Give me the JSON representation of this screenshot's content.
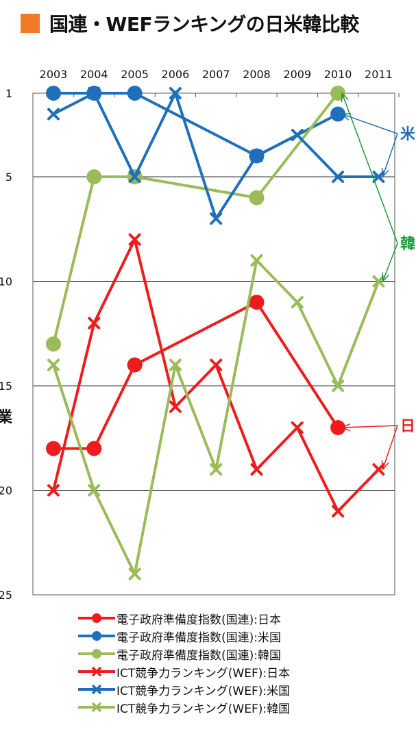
{
  "title": "国連・WEFランキングの日米韓比較",
  "title_color": "#f07a28",
  "side_label": "業",
  "callouts": [
    {
      "text": "米",
      "color": "#1f6fba"
    },
    {
      "text": "韓",
      "color": "#1e9a3c"
    },
    {
      "text": "日",
      "color": "#ee1c1c"
    }
  ],
  "chart_data": {
    "type": "line",
    "title": "国連・WEFランキングの日米韓比較",
    "x": [
      "2003",
      "2004",
      "2005",
      "2006",
      "2007",
      "2008",
      "2009",
      "2010",
      "2011"
    ],
    "y_ticks": [
      "1",
      "5",
      "10",
      "15",
      "20",
      "25"
    ],
    "ylim": [
      1,
      25
    ],
    "y_reversed": true,
    "x_axis_position": "top",
    "grid": "horizontal",
    "series": [
      {
        "name": "電子政府準備度指数(国連):日本",
        "color": "#ee1c1c",
        "marker": "circle",
        "values": [
          18,
          18,
          14,
          null,
          null,
          11,
          null,
          17,
          null
        ]
      },
      {
        "name": "電子政府準備度指数(国連):米国",
        "color": "#1f6fba",
        "marker": "circle",
        "values": [
          1,
          1,
          1,
          null,
          null,
          4,
          null,
          2,
          null
        ]
      },
      {
        "name": "電子政府準備度指数(国連):韓国",
        "color": "#9bbb59",
        "marker": "circle",
        "values": [
          13,
          5,
          5,
          null,
          null,
          6,
          null,
          1,
          null
        ]
      },
      {
        "name": "ICT競争力ランキング(WEF):日本",
        "color": "#ee1c1c",
        "marker": "x",
        "values": [
          20,
          12,
          8,
          16,
          14,
          19,
          17,
          21,
          19
        ]
      },
      {
        "name": "ICT競争力ランキング(WEF):米国",
        "color": "#1f6fba",
        "marker": "x",
        "values": [
          2,
          1,
          5,
          1,
          7,
          4,
          3,
          5,
          5
        ]
      },
      {
        "name": "ICT競争力ランキング(WEF):韓国",
        "color": "#9bbb59",
        "marker": "x",
        "values": [
          14,
          20,
          24,
          14,
          19,
          9,
          11,
          15,
          10
        ]
      }
    ]
  }
}
